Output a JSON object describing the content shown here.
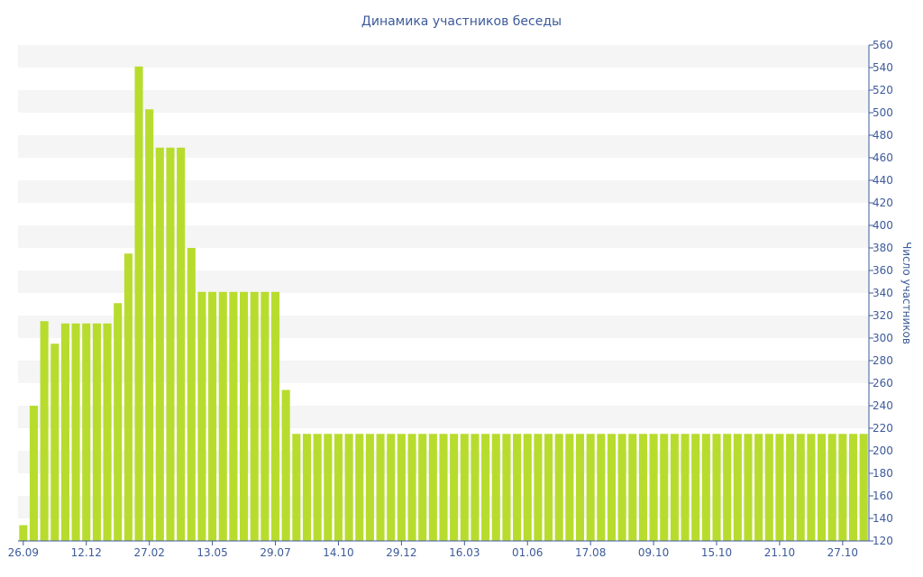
{
  "chart_data": {
    "type": "bar",
    "title": "Динамика участников беседы",
    "xlabel": "",
    "ylabel": "Число участников",
    "y_axis_side": "right",
    "ylim": [
      120,
      560
    ],
    "y_tick_step": 20,
    "y_ticks": [
      120,
      140,
      160,
      180,
      200,
      220,
      240,
      260,
      280,
      300,
      320,
      340,
      360,
      380,
      400,
      420,
      440,
      460,
      480,
      500,
      520,
      540,
      560
    ],
    "x_tick_labels": [
      "26.09",
      "12.12",
      "27.02",
      "13.05",
      "29.07",
      "14.10",
      "29.12",
      "16.03",
      "01.06",
      "17.08",
      "09.10",
      "15.10",
      "21.10",
      "27.10"
    ],
    "x_tick_bar_index": [
      0,
      6,
      12,
      18,
      24,
      30,
      36,
      42,
      48,
      54,
      60,
      66,
      72,
      78
    ],
    "grid": "alternating horizontal bands",
    "legend": "none",
    "colors": {
      "bar": "#b8dc2e",
      "band": "#f5f5f5",
      "text": "#3c5a99",
      "axis": "#3c5a99"
    },
    "values": [
      134,
      240,
      315,
      295,
      313,
      313,
      313,
      313,
      313,
      331,
      375,
      541,
      503,
      469,
      469,
      469,
      380,
      341,
      341,
      341,
      341,
      341,
      341,
      341,
      341,
      254,
      215,
      215,
      215,
      215,
      215,
      215,
      215,
      215,
      215,
      215,
      215,
      215,
      215,
      215,
      215,
      215,
      215,
      215,
      215,
      215,
      215,
      215,
      215,
      215,
      215,
      215,
      215,
      215,
      215,
      215,
      215,
      215,
      215,
      215,
      215,
      215,
      215,
      215,
      215,
      215,
      215,
      215,
      215,
      215,
      215,
      215,
      215,
      215,
      215,
      215,
      215,
      215,
      215,
      215,
      215
    ]
  }
}
